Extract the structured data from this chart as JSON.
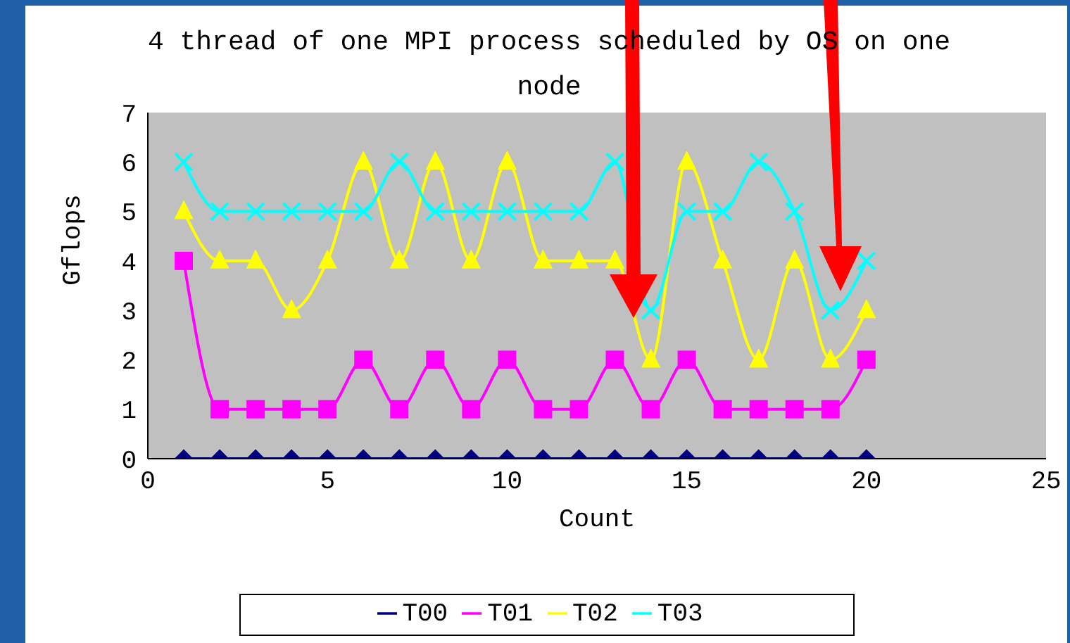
{
  "chart_data": {
    "type": "line",
    "title": "4 thread of one MPI process scheduled by OS on one node",
    "xlabel": "Count",
    "ylabel": "Gflops",
    "x": [
      1,
      2,
      3,
      4,
      5,
      6,
      7,
      8,
      9,
      10,
      11,
      12,
      13,
      14,
      15,
      16,
      17,
      18,
      19,
      20
    ],
    "xlim": [
      0,
      25
    ],
    "xticks": [
      0,
      5,
      10,
      15,
      20,
      25
    ],
    "ylim": [
      0,
      7
    ],
    "yticks": [
      0,
      1,
      2,
      3,
      4,
      5,
      6,
      7
    ],
    "grid": false,
    "legend": "bottom",
    "series": [
      {
        "name": "T00",
        "color": "#000080",
        "marker": "diamond",
        "values": [
          0,
          0,
          0,
          0,
          0,
          0,
          0,
          0,
          0,
          0,
          0,
          0,
          0,
          0,
          0,
          0,
          0,
          0,
          0,
          0
        ]
      },
      {
        "name": "T01",
        "color": "#ff00ff",
        "marker": "square",
        "values": [
          4,
          1,
          1,
          1,
          1,
          2,
          1,
          2,
          1,
          2,
          1,
          1,
          2,
          1,
          2,
          1,
          1,
          1,
          1,
          2
        ]
      },
      {
        "name": "T02",
        "color": "#ffff00",
        "marker": "triangle",
        "values": [
          5,
          4,
          4,
          3,
          4,
          6,
          4,
          6,
          4,
          6,
          4,
          4,
          4,
          2,
          6,
          4,
          2,
          4,
          2,
          3
        ]
      },
      {
        "name": "T03",
        "color": "#00ffff",
        "marker": "cross",
        "values": [
          6,
          5,
          5,
          5,
          5,
          5,
          6,
          5,
          5,
          5,
          5,
          5,
          6,
          3,
          5,
          5,
          6,
          5,
          3,
          4
        ]
      }
    ]
  }
}
